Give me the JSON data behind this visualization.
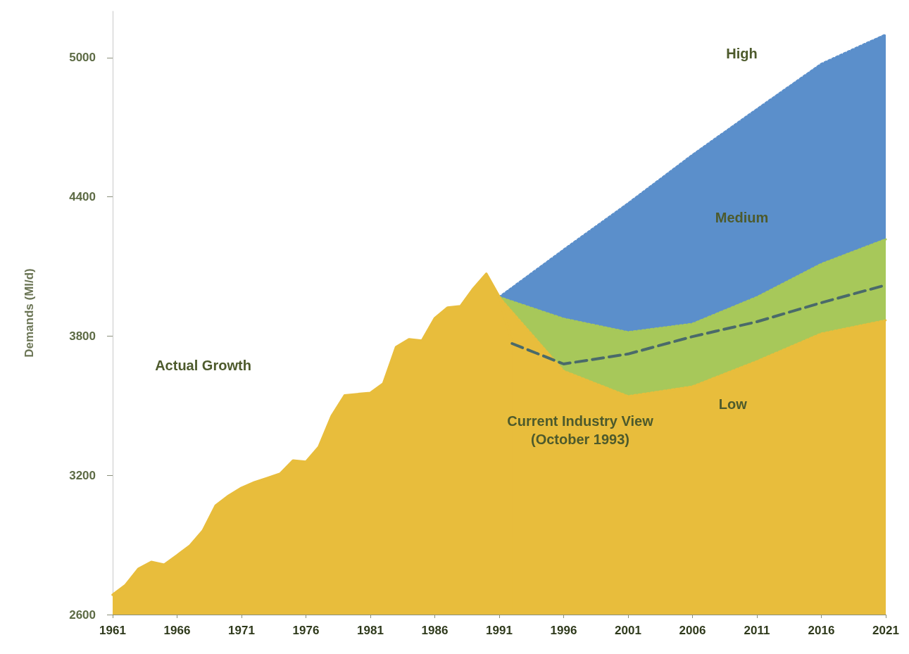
{
  "chart_data": {
    "type": "area",
    "ylabel": "Demands (Ml/d)",
    "xlim": [
      1961,
      2021
    ],
    "xticks": [
      1961,
      1966,
      1971,
      1976,
      1981,
      1986,
      1991,
      1996,
      2001,
      2006,
      2011,
      2016,
      2021
    ],
    "ylim": [
      2600,
      5200
    ],
    "yticks": [
      2600,
      3200,
      3800,
      4400,
      5000
    ],
    "grid": false,
    "series": [
      {
        "color": "#5b8fcb",
        "line_style": "dotted",
        "x": [
          1991,
          1996,
          2001,
          2006,
          2011,
          2016,
          2021
        ],
        "values": [
          3968,
          4172,
          4372,
          4581,
          4778,
          4973,
          5100
        ]
      },
      {
        "color": "#a7c85a",
        "line_style": "dotted",
        "x": [
          1991,
          1996,
          2001,
          2006,
          2011,
          2016,
          2021
        ],
        "values": [
          3968,
          3875,
          3817,
          3853,
          3968,
          4111,
          4217
        ]
      },
      {
        "color": "#e8bd3c",
        "line_style": "dotted",
        "x": [
          1991,
          1996,
          2001,
          2006,
          2011,
          2016,
          2021
        ],
        "values": [
          3968,
          3650,
          3541,
          3583,
          3692,
          3811,
          3868
        ]
      },
      {
        "color": "#e8bd3c",
        "line_style": "solid",
        "x": [
          1961,
          1962,
          1963,
          1964,
          1965,
          1966,
          1967,
          1968,
          1969,
          1970,
          1971,
          1972,
          1973,
          1974,
          1975,
          1976,
          1977,
          1978,
          1979,
          1980,
          1981,
          1982,
          1983,
          1984,
          1985,
          1986,
          1987,
          1988,
          1989,
          1990,
          1991,
          1992
        ],
        "values": [
          2685,
          2727,
          2797,
          2827,
          2815,
          2855,
          2897,
          2961,
          3070,
          3112,
          3146,
          3170,
          3188,
          3207,
          3264,
          3258,
          3322,
          3456,
          3544,
          3550,
          3555,
          3595,
          3753,
          3786,
          3780,
          3877,
          3923,
          3929,
          4005,
          4069,
          3970,
          3768
        ]
      },
      {
        "type": "line",
        "color": "#4a6a6a",
        "line_style": "dashed",
        "x": [
          1992,
          1996,
          2001,
          2006,
          2011,
          2016,
          2021
        ],
        "values": [
          3768,
          3680,
          3723,
          3798,
          3862,
          3944,
          4020
        ]
      }
    ],
    "annotations": [
      "High",
      "Medium",
      "Low",
      "Actual Growth",
      "Current Industry View\n(October 1993)"
    ]
  }
}
